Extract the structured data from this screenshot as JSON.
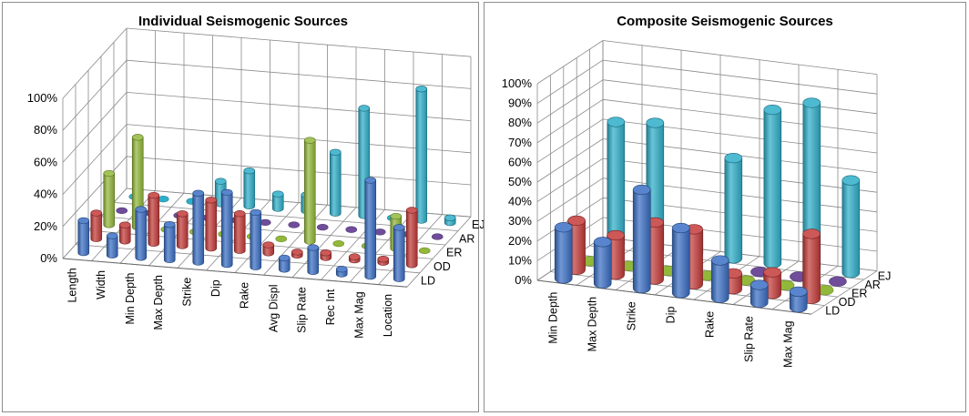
{
  "chart_data": [
    {
      "type": "bar",
      "title": "Individual Seismogenic Sources",
      "categories": [
        "Length",
        "Width",
        "Min Depth",
        "Max Depth",
        "Strike",
        "Dip",
        "Rake",
        "Avg Displ",
        "Slip Rate",
        "Rec Int",
        "Max Mag",
        "Location"
      ],
      "series": [
        {
          "name": "LD",
          "values": [
            20,
            12,
            30,
            22,
            43,
            45,
            34,
            7,
            15,
            3,
            60,
            32
          ]
        },
        {
          "name": "OD",
          "values": [
            16,
            10,
            30,
            20,
            30,
            23,
            5,
            2,
            3,
            2,
            2,
            34
          ]
        },
        {
          "name": "ER",
          "values": [
            32,
            56,
            0,
            0,
            0,
            0,
            0,
            63,
            0,
            0,
            20,
            0
          ]
        },
        {
          "name": "AR",
          "values": [
            0,
            0,
            0,
            0,
            0,
            0,
            0,
            0,
            0,
            0,
            0,
            0
          ]
        },
        {
          "name": "EJ",
          "values": [
            0,
            0,
            0,
            14,
            22,
            9,
            10,
            38,
            67,
            0,
            82,
            3
          ]
        }
      ],
      "yticks": [
        "0%",
        "20%",
        "40%",
        "60%",
        "80%",
        "100%"
      ],
      "ylim": [
        0,
        100
      ],
      "grid": true
    },
    {
      "type": "bar",
      "title": "Composite Seismogenic Sources",
      "categories": [
        "Min Depth",
        "Max Depth",
        "Strike",
        "Dip",
        "Rake",
        "Slip Rate",
        "Max Mag"
      ],
      "series": [
        {
          "name": "LD",
          "values": [
            26,
            21,
            50,
            33,
            19,
            9,
            8
          ]
        },
        {
          "name": "OD",
          "values": [
            25,
            20,
            29,
            28,
            8,
            11,
            33
          ]
        },
        {
          "name": "ER",
          "values": [
            0,
            0,
            0,
            0,
            0,
            0,
            0
          ]
        },
        {
          "name": "AR",
          "values": [
            0,
            0,
            0,
            0,
            0,
            0,
            0
          ]
        },
        {
          "name": "EJ",
          "values": [
            62,
            64,
            11,
            51,
            78,
            84,
            47
          ]
        }
      ],
      "yticks": [
        "0%",
        "10%",
        "20%",
        "30%",
        "40%",
        "50%",
        "60%",
        "70%",
        "80%",
        "90%",
        "100%"
      ],
      "ylim": [
        0,
        100
      ],
      "grid": true
    }
  ],
  "colors": {
    "LD": "#3b6fc4",
    "OD": "#c33b39",
    "ER": "#92b83a",
    "AR": "#6f4d9a",
    "EJ": "#2eaec9"
  }
}
